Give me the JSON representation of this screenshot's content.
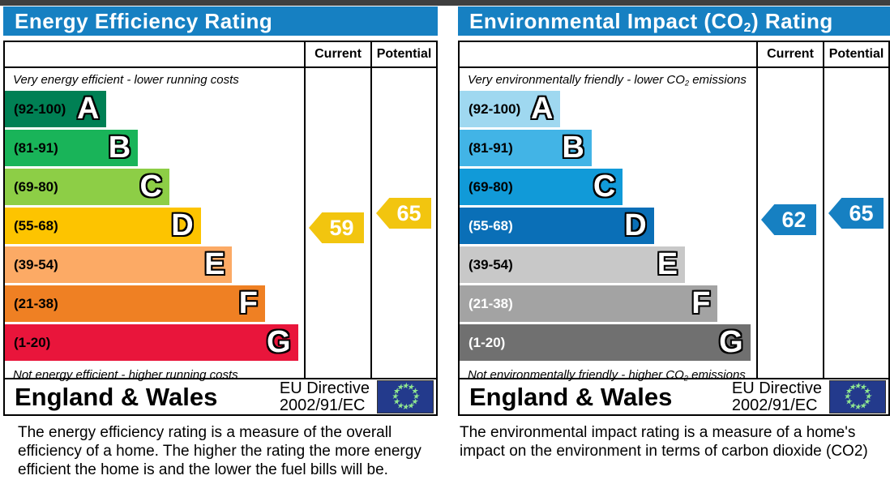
{
  "page": {
    "top_strip_color": "#3f3f3f"
  },
  "left_chart": {
    "title": "Energy Efficiency Rating",
    "header_color": "#1680c2",
    "columns": {
      "current": "Current",
      "potential": "Potential"
    },
    "top_caption": "Very energy efficient - lower running costs",
    "bottom_caption": "Not energy efficient - higher running costs",
    "bands": [
      {
        "letter": "A",
        "range": "(92-100)",
        "color": "#008054",
        "range_color": "#000000",
        "width_pct": 34
      },
      {
        "letter": "B",
        "range": "(81-91)",
        "color": "#19b459",
        "range_color": "#000000",
        "width_pct": 44.5
      },
      {
        "letter": "C",
        "range": "(69-80)",
        "color": "#8dce46",
        "range_color": "#000000",
        "width_pct": 55
      },
      {
        "letter": "D",
        "range": "(55-68)",
        "color": "#fdc400",
        "range_color": "#000000",
        "width_pct": 65.5
      },
      {
        "letter": "E",
        "range": "(39-54)",
        "color": "#fcaa65",
        "range_color": "#000000",
        "width_pct": 76
      },
      {
        "letter": "F",
        "range": "(21-38)",
        "color": "#ef8023",
        "range_color": "#000000",
        "width_pct": 87
      },
      {
        "letter": "G",
        "range": "(1-20)",
        "color": "#e9153b",
        "range_color": "#000000",
        "width_pct": 98
      }
    ],
    "current": {
      "value": "59",
      "color": "#f2c50f"
    },
    "potential": {
      "value": "65",
      "color": "#f2c50f"
    },
    "footer": {
      "region": "England & Wales",
      "directive_line1": "EU Directive",
      "directive_line2": "2002/91/EC",
      "flag_blue": "#233a8c",
      "star_color": "#8fe68f"
    },
    "description": "The energy efficiency rating is a measure of the overall efficiency of a home.  The higher the rating the more energy efficient the home is and the lower the fuel bills will be."
  },
  "right_chart": {
    "title_pre": "Environmental Impact (CO",
    "title_sub": "2",
    "title_post": ") Rating",
    "header_color": "#1680c2",
    "columns": {
      "current": "Current",
      "potential": "Potential"
    },
    "top_caption_pre": "Very environmentally friendly - lower CO",
    "top_caption_sub": "2",
    "top_caption_post": " emissions",
    "bottom_caption_pre": "Not environmentally friendly - higher CO",
    "bottom_caption_sub": "2",
    "bottom_caption_post": " emissions",
    "bands": [
      {
        "letter": "A",
        "range": "(92-100)",
        "color": "#9fd8f0",
        "range_color": "#000000",
        "width_pct": 34
      },
      {
        "letter": "B",
        "range": "(81-91)",
        "color": "#42b4e6",
        "range_color": "#000000",
        "width_pct": 44.5
      },
      {
        "letter": "C",
        "range": "(69-80)",
        "color": "#119ad8",
        "range_color": "#000000",
        "width_pct": 55
      },
      {
        "letter": "D",
        "range": "(55-68)",
        "color": "#0a6fb7",
        "range_color": "#ffffff",
        "width_pct": 65.5
      },
      {
        "letter": "E",
        "range": "(39-54)",
        "color": "#c8c8c8",
        "range_color": "#000000",
        "width_pct": 76
      },
      {
        "letter": "F",
        "range": "(21-38)",
        "color": "#a3a3a3",
        "range_color": "#ffffff",
        "width_pct": 87
      },
      {
        "letter": "G",
        "range": "(1-20)",
        "color": "#707070",
        "range_color": "#ffffff",
        "width_pct": 98
      }
    ],
    "current": {
      "value": "62",
      "color": "#1680c2"
    },
    "potential": {
      "value": "65",
      "color": "#1680c2"
    },
    "footer": {
      "region": "England & Wales",
      "directive_line1": "EU Directive",
      "directive_line2": "2002/91/EC",
      "flag_blue": "#233a8c",
      "star_color": "#8fe68f"
    },
    "description": "The environmental impact rating is a measure of a home's impact on the environment in terms of carbon dioxide (CO2)"
  },
  "chart_data": [
    {
      "type": "bar",
      "title": "Energy Efficiency Rating",
      "categories": [
        "A (92-100)",
        "B (81-91)",
        "C (69-80)",
        "D (55-68)",
        "E (39-54)",
        "F (21-38)",
        "G (1-20)"
      ],
      "band_colors": [
        "#008054",
        "#19b459",
        "#8dce46",
        "#fdc400",
        "#fcaa65",
        "#ef8023",
        "#e9153b"
      ],
      "series": [
        {
          "name": "Current",
          "values": [
            59
          ],
          "band": "D"
        },
        {
          "name": "Potential",
          "values": [
            65
          ],
          "band": "D"
        }
      ],
      "scale": [
        1,
        100
      ],
      "top_caption": "Very energy efficient - lower running costs",
      "bottom_caption": "Not energy efficient - higher running costs",
      "legend_position": "top-right-columns"
    },
    {
      "type": "bar",
      "title": "Environmental Impact (CO2) Rating",
      "categories": [
        "A (92-100)",
        "B (81-91)",
        "C (69-80)",
        "D (55-68)",
        "E (39-54)",
        "F (21-38)",
        "G (1-20)"
      ],
      "band_colors": [
        "#9fd8f0",
        "#42b4e6",
        "#119ad8",
        "#0a6fb7",
        "#c8c8c8",
        "#a3a3a3",
        "#707070"
      ],
      "series": [
        {
          "name": "Current",
          "values": [
            62
          ],
          "band": "D"
        },
        {
          "name": "Potential",
          "values": [
            65
          ],
          "band": "D"
        }
      ],
      "scale": [
        1,
        100
      ],
      "top_caption": "Very environmentally friendly - lower CO2 emissions",
      "bottom_caption": "Not environmentally friendly - higher CO2 emissions",
      "legend_position": "top-right-columns"
    }
  ]
}
